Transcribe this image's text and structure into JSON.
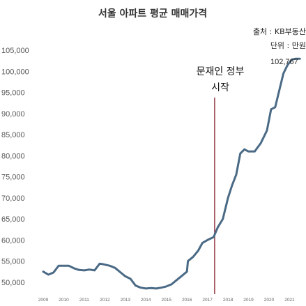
{
  "chart_data": {
    "type": "line",
    "title": "서울 아파트 평균 매매가격",
    "source": "출처 : KB부동산",
    "unit": "단위 : 만원",
    "xlabel": "",
    "ylabel": "",
    "ylim": [
      47500,
      107000
    ],
    "xlim": [
      2009,
      2021.8
    ],
    "yticks": [
      50000,
      55000,
      60000,
      65000,
      70000,
      75000,
      80000,
      85000,
      90000,
      95000,
      100000,
      105000
    ],
    "ytick_labels": [
      "50,000",
      "55,000",
      "60,000",
      "65,000",
      "70,000",
      "75,000",
      "80,000",
      "85,000",
      "90,000",
      "95,000",
      "100,000",
      "105,000"
    ],
    "xticks": [
      2009,
      2010,
      2011,
      2012,
      2013,
      2014,
      2015,
      2016,
      2017,
      2018,
      2019,
      2020,
      2021
    ],
    "xtick_labels": [
      "2009",
      "2010",
      "2011",
      "2012",
      "2013",
      "2014",
      "2015",
      "2016",
      "2017",
      "2018",
      "2019",
      "2020",
      "2021"
    ],
    "grid": false,
    "legend": "none",
    "line_color": "#4a6a85",
    "marker_color": "#8b2a35",
    "series": [
      {
        "x": [
          2009.0,
          2009.25,
          2009.5,
          2009.75,
          2010.0,
          2010.25,
          2010.5,
          2010.75,
          2011.0,
          2011.25,
          2011.5,
          2011.75,
          2011.9,
          2012.25,
          2012.5,
          2012.75,
          2013.0,
          2013.25,
          2013.5,
          2013.75,
          2014.0,
          2014.25,
          2014.5,
          2014.75,
          2015.0,
          2015.25,
          2015.5,
          2015.75,
          2016.0,
          2016.05,
          2016.3,
          2016.55,
          2016.75,
          2017.0,
          2017.3,
          2017.5,
          2017.75,
          2018.0,
          2018.2,
          2018.4,
          2018.6,
          2018.8,
          2019.0,
          2019.3,
          2019.6,
          2019.9,
          2020.1,
          2020.3,
          2020.45,
          2020.7,
          2020.9,
          2021.1,
          2021.3,
          2021.5
        ],
        "y": [
          52500,
          51800,
          52300,
          53900,
          53900,
          53900,
          53300,
          52900,
          52800,
          53000,
          52800,
          54400,
          54300,
          53900,
          53400,
          52400,
          51400,
          50800,
          49200,
          48700,
          48500,
          48600,
          48500,
          48700,
          49000,
          49500,
          50500,
          51500,
          52500,
          55000,
          56000,
          57500,
          59300,
          60000,
          60700,
          63000,
          65000,
          70000,
          73000,
          75500,
          80500,
          81500,
          81000,
          81000,
          83000,
          86000,
          91000,
          91500,
          94500,
          99500,
          101500,
          102767,
          103000,
          103000
        ]
      }
    ],
    "marker_x": 2017.35,
    "annotations": {
      "event_line1": "문재인 정부",
      "event_line2": "시작",
      "peak_label": "102,767"
    }
  }
}
